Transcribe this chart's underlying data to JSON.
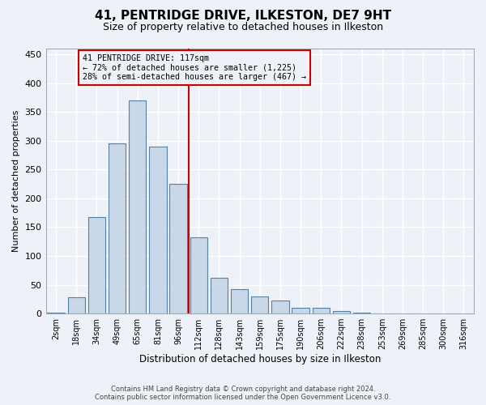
{
  "title": "41, PENTRIDGE DRIVE, ILKESTON, DE7 9HT",
  "subtitle": "Size of property relative to detached houses in Ilkeston",
  "xlabel": "Distribution of detached houses by size in Ilkeston",
  "ylabel": "Number of detached properties",
  "categories": [
    "2sqm",
    "18sqm",
    "34sqm",
    "49sqm",
    "65sqm",
    "81sqm",
    "96sqm",
    "112sqm",
    "128sqm",
    "143sqm",
    "159sqm",
    "175sqm",
    "190sqm",
    "206sqm",
    "222sqm",
    "238sqm",
    "253sqm",
    "269sqm",
    "285sqm",
    "300sqm",
    "316sqm"
  ],
  "values": [
    1,
    28,
    167,
    295,
    370,
    290,
    225,
    133,
    62,
    43,
    30,
    22,
    10,
    10,
    5,
    2,
    0,
    0,
    0,
    0,
    0
  ],
  "bar_color": "#c8d8e8",
  "bar_edge_color": "#5580a0",
  "annotation_text": "41 PENTRIDGE DRIVE: 117sqm\n← 72% of detached houses are smaller (1,225)\n28% of semi-detached houses are larger (467) →",
  "vline_color": "#cc0000",
  "annotation_box_color": "#cc0000",
  "ylim": [
    0,
    460
  ],
  "yticks": [
    0,
    50,
    100,
    150,
    200,
    250,
    300,
    350,
    400,
    450
  ],
  "footer_line1": "Contains HM Land Registry data © Crown copyright and database right 2024.",
  "footer_line2": "Contains public sector information licensed under the Open Government Licence v3.0.",
  "bg_color": "#eef2f8",
  "grid_color": "#ffffff",
  "title_fontsize": 11,
  "subtitle_fontsize": 9,
  "vline_x": 7.0
}
